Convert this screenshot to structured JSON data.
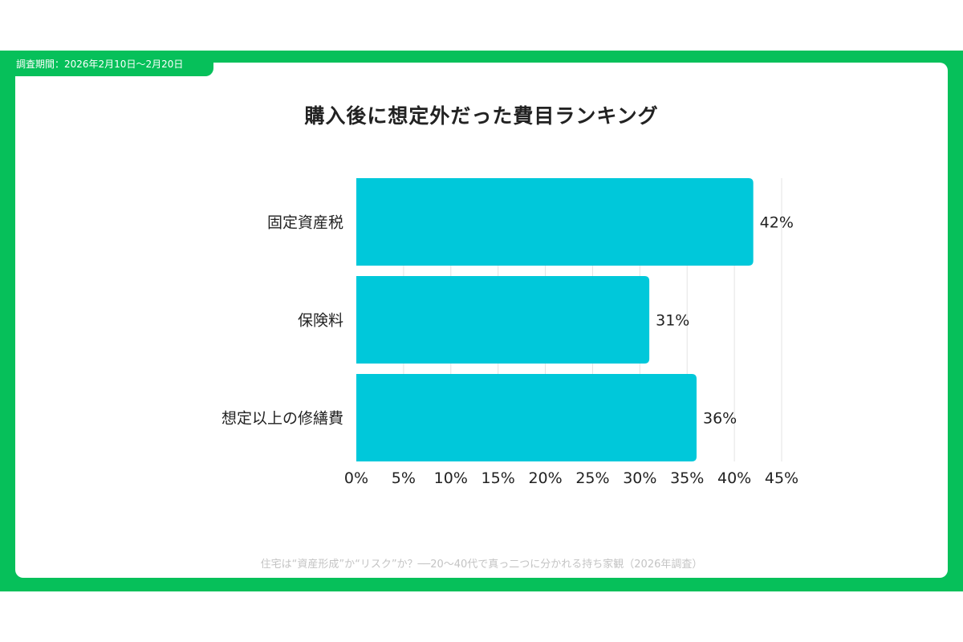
{
  "period_label": "調査期間：2026年2月10日〜2月20日",
  "footer": "住宅は“資産形成”か“リスク”か？──20〜40代で真っ二つに分かれる持ち家観（2026年調査）",
  "colors": {
    "frame": "#06c05a",
    "bar": "#00c8da",
    "grid": "#e3e3e3"
  },
  "chart_data": {
    "type": "bar",
    "orientation": "horizontal",
    "title": "購入後に想定外だった費目ランキング",
    "categories": [
      "固定資産税",
      "保険料",
      "想定以上の修繕費"
    ],
    "values": [
      42,
      31,
      36
    ],
    "value_labels": [
      "42%",
      "31%",
      "36%"
    ],
    "xlim": [
      0,
      45
    ],
    "xticks": [
      0,
      5,
      10,
      15,
      20,
      25,
      30,
      35,
      40,
      45
    ],
    "xtick_labels": [
      "0%",
      "5%",
      "10%",
      "15%",
      "20%",
      "25%",
      "30%",
      "35%",
      "40%",
      "45%"
    ],
    "grid": true,
    "legend": "none"
  }
}
